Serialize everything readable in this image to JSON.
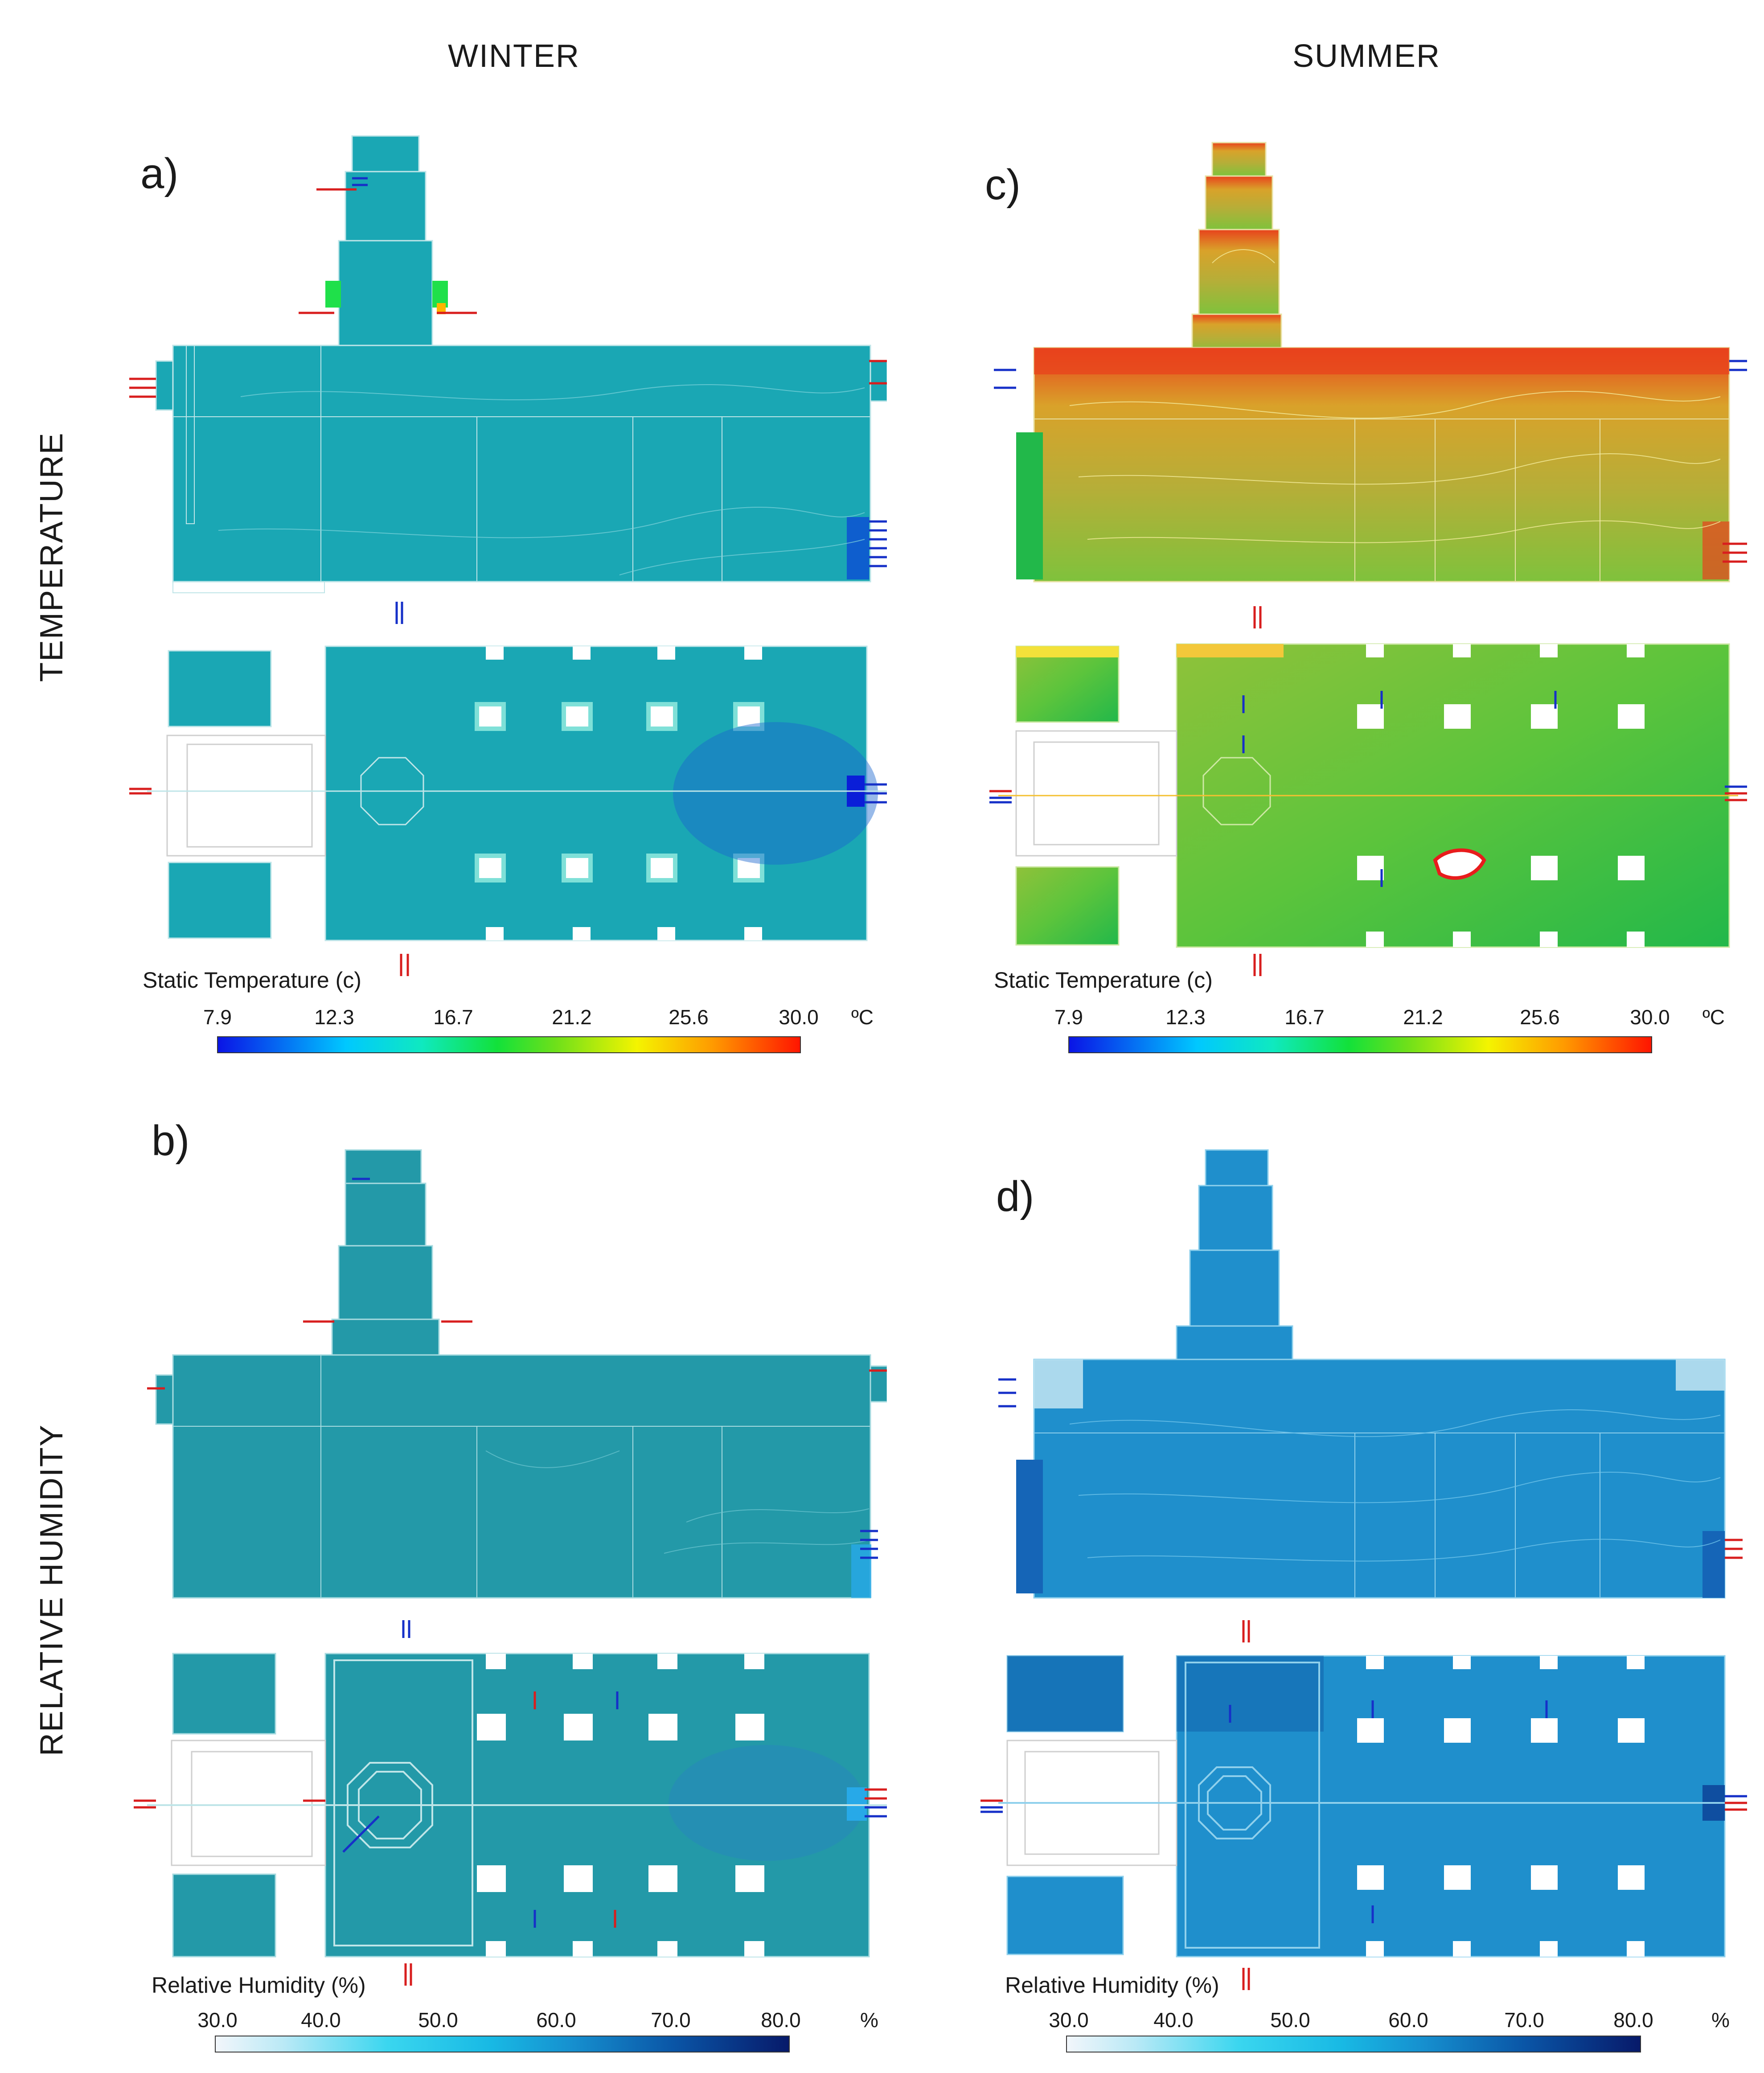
{
  "columns": {
    "winter": "WINTER",
    "summer": "SUMMER"
  },
  "rows": {
    "temperature": "TEMPERATURE",
    "humidity": "RELATIVE HUMIDITY"
  },
  "panels": [
    {
      "label": "a)",
      "season": "winter",
      "variable": "temperature"
    },
    {
      "label": "b)",
      "season": "winter",
      "variable": "humidity"
    },
    {
      "label": "c)",
      "season": "summer",
      "variable": "temperature"
    },
    {
      "label": "d)",
      "season": "summer",
      "variable": "humidity"
    }
  ],
  "legends": {
    "temperature": {
      "title": "Static Temperature (c)",
      "ticks": [
        "7.9",
        "12.3",
        "16.7",
        "21.2",
        "25.6",
        "30.0"
      ],
      "unit": "ºC"
    },
    "humidity": {
      "title": "Relative Humidity (%)",
      "ticks": [
        "30.0",
        "40.0",
        "50.0",
        "60.0",
        "70.0",
        "80.0"
      ],
      "unit": "%"
    }
  },
  "colors": {
    "winter_fill": "#1aa7b4",
    "winter_humidity_fill": "#2399a8",
    "summer_temp_warm": "#b8a83a",
    "summer_temp_hot": "#e8421c",
    "summer_temp_cool": "#22b84a",
    "summer_humidity_fill": "#1f8fcc",
    "arrow_red": "#d81e1e",
    "arrow_blue": "#1630c8"
  }
}
